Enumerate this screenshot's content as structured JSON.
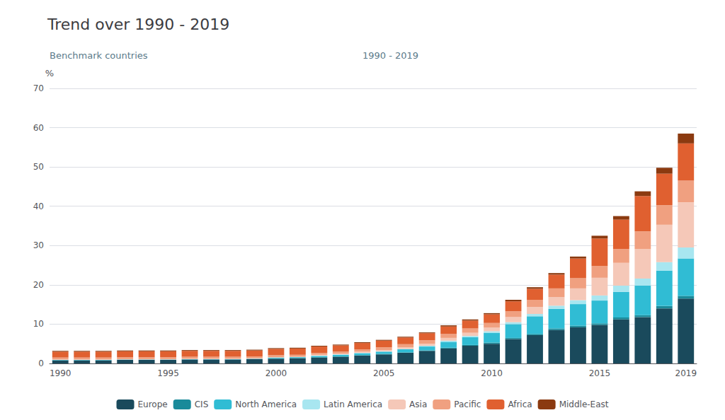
{
  "chart_data": {
    "type": "bar",
    "title": "Trend over 1990 - 2019",
    "annotations": [
      "Benchmark countries",
      "1990 - 2019"
    ],
    "ylabel": "%",
    "categories": [
      "1990",
      null,
      null,
      null,
      null,
      "1995",
      null,
      null,
      null,
      null,
      "2000",
      null,
      null,
      null,
      null,
      "2005",
      null,
      null,
      null,
      null,
      "2010",
      null,
      null,
      null,
      null,
      "2015",
      null,
      null,
      null,
      "2019"
    ],
    "series": [
      {
        "name": "Europe",
        "color": "#1a4a5c",
        "values": [
          0.8,
          0.8,
          0.8,
          0.9,
          0.9,
          0.9,
          1.0,
          1.0,
          1.0,
          1.1,
          1.2,
          1.3,
          1.5,
          1.7,
          2.0,
          2.3,
          2.7,
          3.2,
          3.8,
          4.5,
          5.0,
          6.2,
          7.2,
          8.5,
          9.2,
          9.8,
          11.2,
          11.8,
          14.0,
          16.5
        ]
      },
      {
        "name": "CIS",
        "color": "#1a8a9a",
        "values": [
          0.0,
          0.0,
          0.0,
          0.0,
          0.0,
          0.0,
          0.0,
          0.0,
          0.0,
          0.0,
          0.1,
          0.1,
          0.1,
          0.1,
          0.1,
          0.1,
          0.1,
          0.1,
          0.2,
          0.2,
          0.3,
          0.3,
          0.3,
          0.4,
          0.4,
          0.4,
          0.5,
          0.5,
          0.6,
          0.7
        ]
      },
      {
        "name": "North America",
        "color": "#30bcd4",
        "values": [
          0.1,
          0.1,
          0.1,
          0.1,
          0.1,
          0.1,
          0.1,
          0.1,
          0.1,
          0.1,
          0.2,
          0.2,
          0.3,
          0.4,
          0.5,
          0.6,
          0.8,
          1.0,
          1.5,
          2.0,
          2.5,
          3.5,
          4.5,
          5.0,
          5.5,
          5.8,
          6.5,
          7.5,
          9.0,
          9.5
        ]
      },
      {
        "name": "Latin America",
        "color": "#a8e6f0",
        "values": [
          0.0,
          0.0,
          0.0,
          0.0,
          0.0,
          0.0,
          0.0,
          0.0,
          0.0,
          0.0,
          0.0,
          0.0,
          0.1,
          0.1,
          0.1,
          0.1,
          0.1,
          0.2,
          0.3,
          0.3,
          0.4,
          0.5,
          0.6,
          0.8,
          1.0,
          1.3,
          1.6,
          1.8,
          2.2,
          2.8
        ]
      },
      {
        "name": "Asia",
        "color": "#f5c8b8",
        "values": [
          0.1,
          0.1,
          0.1,
          0.1,
          0.1,
          0.1,
          0.1,
          0.1,
          0.1,
          0.1,
          0.1,
          0.1,
          0.2,
          0.2,
          0.3,
          0.3,
          0.4,
          0.5,
          0.7,
          0.8,
          0.9,
          1.3,
          1.8,
          2.2,
          3.0,
          4.5,
          5.8,
          7.5,
          9.5,
          11.5
        ]
      },
      {
        "name": "Pacific",
        "color": "#f0a080",
        "values": [
          0.5,
          0.5,
          0.5,
          0.5,
          0.5,
          0.5,
          0.5,
          0.5,
          0.5,
          0.5,
          0.5,
          0.5,
          0.5,
          0.5,
          0.6,
          0.7,
          0.8,
          0.9,
          1.0,
          1.1,
          1.2,
          1.5,
          1.8,
          2.2,
          2.6,
          3.0,
          3.5,
          4.5,
          5.0,
          5.5
        ]
      },
      {
        "name": "Africa",
        "color": "#e06030",
        "values": [
          1.5,
          1.5,
          1.5,
          1.5,
          1.5,
          1.5,
          1.5,
          1.5,
          1.5,
          1.5,
          1.6,
          1.6,
          1.6,
          1.6,
          1.6,
          1.7,
          1.7,
          1.8,
          1.9,
          2.0,
          2.2,
          2.5,
          2.8,
          3.5,
          5.0,
          7.0,
          7.5,
          9.0,
          8.0,
          9.5
        ]
      },
      {
        "name": "Middle-East",
        "color": "#8b3a10",
        "values": [
          0.2,
          0.2,
          0.2,
          0.2,
          0.2,
          0.2,
          0.2,
          0.2,
          0.2,
          0.2,
          0.2,
          0.2,
          0.2,
          0.2,
          0.2,
          0.2,
          0.2,
          0.2,
          0.3,
          0.3,
          0.3,
          0.4,
          0.4,
          0.4,
          0.5,
          0.7,
          0.9,
          1.2,
          1.5,
          2.5
        ]
      }
    ],
    "stacked": true,
    "ylim": [
      0,
      70
    ],
    "yticks": [
      0,
      10,
      20,
      30,
      40,
      50,
      60,
      70
    ],
    "grid": true,
    "legend": "bottom"
  }
}
